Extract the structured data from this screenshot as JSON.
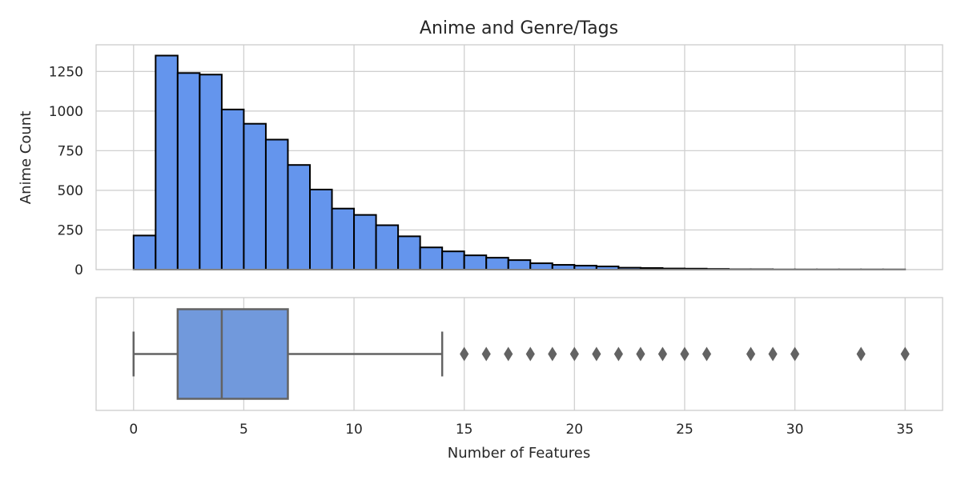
{
  "chart_data": [
    {
      "type": "bar",
      "subtype": "histogram",
      "title": "Anime and Genre/Tags",
      "xlabel": "",
      "ylabel": "Anime Count",
      "bin_edges": [
        0,
        1,
        2,
        3,
        4,
        5,
        6,
        7,
        8,
        9,
        10,
        11,
        12,
        13,
        14,
        15,
        16,
        17,
        18,
        19,
        20,
        21,
        22,
        23,
        24,
        25,
        26,
        27,
        28,
        29,
        30,
        31,
        32,
        33,
        34,
        35
      ],
      "values": [
        215,
        1350,
        1240,
        1230,
        1010,
        920,
        820,
        660,
        505,
        385,
        345,
        280,
        210,
        140,
        115,
        90,
        75,
        60,
        40,
        30,
        25,
        20,
        12,
        10,
        7,
        6,
        4,
        2,
        2,
        1,
        1,
        1,
        1,
        1,
        1
      ],
      "yticks": [
        0,
        250,
        500,
        750,
        1000,
        1250
      ],
      "xticks": [
        0,
        5,
        10,
        15,
        20,
        25,
        30,
        35
      ],
      "xlim": [
        -1.7,
        36.7
      ],
      "ylim": [
        0,
        1418
      ],
      "color": "#6495ed",
      "edge_color": "#000000",
      "grid": true
    },
    {
      "type": "boxplot",
      "xlabel": "Number of Features",
      "whisker_low": 0,
      "q1": 2,
      "median": 4,
      "q3": 7,
      "whisker_high": 14,
      "outliers": [
        15,
        16,
        17,
        18,
        19,
        20,
        21,
        22,
        23,
        24,
        25,
        26,
        28,
        29,
        30,
        33,
        35
      ],
      "xticks": [
        0,
        5,
        10,
        15,
        20,
        25,
        30,
        35
      ],
      "xlim": [
        -1.7,
        36.7
      ],
      "color": "#7199dc",
      "line_color": "#636363",
      "grid": true
    }
  ]
}
